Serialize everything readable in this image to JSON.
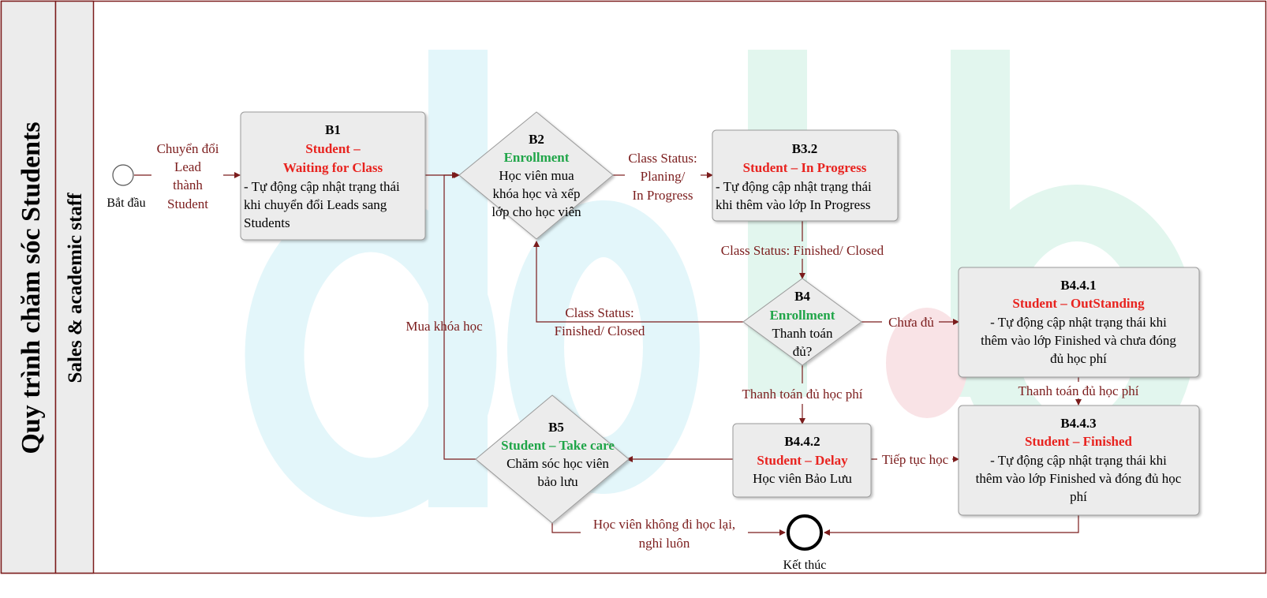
{
  "pool": {
    "title": "Quy trình chăm sóc Students",
    "lane": "Sales & academic staff"
  },
  "events": {
    "start": "Bắt đầu",
    "end": "Kết thúc"
  },
  "b1": {
    "id": "B1",
    "line1": "Student –",
    "line2": "Waiting for Class",
    "desc": [
      "- Tự động cập nhật trạng thái",
      "khi chuyển đổi Leads sang",
      "Students"
    ]
  },
  "b2": {
    "id": "B2",
    "title": "Enrollment",
    "desc": [
      "Học viên mua",
      "khóa học và xếp",
      "lớp cho học viên"
    ]
  },
  "b32": {
    "id": "B3.2",
    "title": "Student – In Progress",
    "desc": [
      "- Tự động cập nhật trạng thái",
      "khi thêm vào lớp In Progress"
    ]
  },
  "b4": {
    "id": "B4",
    "title": "Enrollment",
    "desc": [
      "Thanh toán",
      "đủ?"
    ]
  },
  "b441": {
    "id": "B4.4.1",
    "title": "Student – OutStanding",
    "desc": [
      "- Tự động cập nhật trạng thái khi",
      "thêm vào lớp Finished và chưa đóng",
      "đủ học phí"
    ]
  },
  "b442": {
    "id": "B4.4.2",
    "title": "Student – Delay",
    "desc": [
      "Học viên Bảo Lưu"
    ]
  },
  "b443": {
    "id": "B4.4.3",
    "title": "Student – Finished",
    "desc": [
      "- Tự động cập nhật trạng thái khi",
      "thêm vào lớp Finished và đóng đủ học",
      "phí"
    ]
  },
  "b5": {
    "id": "B5",
    "title": "Student – Take care",
    "desc": [
      "Chăm sóc học viên",
      "bảo lưu"
    ]
  },
  "labels": {
    "convert": [
      "Chuyển đổi",
      "Lead",
      "thành",
      "Student"
    ],
    "class_status_planning": [
      "Class Status:",
      "Planing/",
      "In Progress"
    ],
    "class_status_finished": "Class Status: Finished/ Closed",
    "class_status_finished_back": [
      "Class Status:",
      "Finished/ Closed"
    ],
    "buy_course": "Mua khóa học",
    "not_enough": "Chưa đủ",
    "paid_full": "Thanh toán đủ học phí",
    "paid_full_2": "Thanh toán đủ học phí",
    "continue": "Tiếp tục học",
    "quit": [
      "Học viên không đi học lại,",
      "nghỉ luôn"
    ]
  },
  "colors": {
    "line": "#7b1c1c",
    "red": "#e8231f",
    "green": "#1fa548",
    "box": "#ececec",
    "border": "#9a9a9a"
  }
}
